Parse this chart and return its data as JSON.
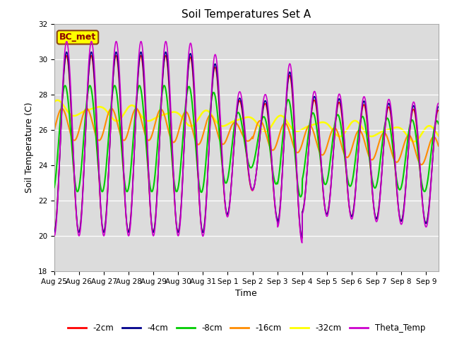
{
  "title": "Soil Temperatures Set A",
  "xlabel": "Time",
  "ylabel": "Soil Temperature (C)",
  "ylim": [
    18,
    32
  ],
  "xlim_days": [
    0,
    15.5
  ],
  "tick_labels": [
    "Aug 25",
    "Aug 26",
    "Aug 27",
    "Aug 28",
    "Aug 29",
    "Aug 30",
    "Aug 31",
    "Sep 1",
    "Sep 2",
    "Sep 3",
    "Sep 4",
    "Sep 5",
    "Sep 6",
    "Sep 7",
    "Sep 8",
    "Sep 9"
  ],
  "tick_positions": [
    0,
    1,
    2,
    3,
    4,
    5,
    6,
    7,
    8,
    9,
    10,
    11,
    12,
    13,
    14,
    15
  ],
  "series_colors": {
    "-2cm": "#FF0000",
    "-4cm": "#00008B",
    "-8cm": "#00CC00",
    "-16cm": "#FF8C00",
    "-32cm": "#FFFF00",
    "Theta_Temp": "#CC00CC"
  },
  "background_color": "#DCDCDC",
  "annotation_text": "BC_met",
  "annotation_bg": "#FFFF00",
  "annotation_border": "#8B4513",
  "yticks": [
    18,
    20,
    22,
    24,
    26,
    28,
    30,
    32
  ],
  "figsize": [
    6.4,
    4.8
  ],
  "dpi": 100
}
